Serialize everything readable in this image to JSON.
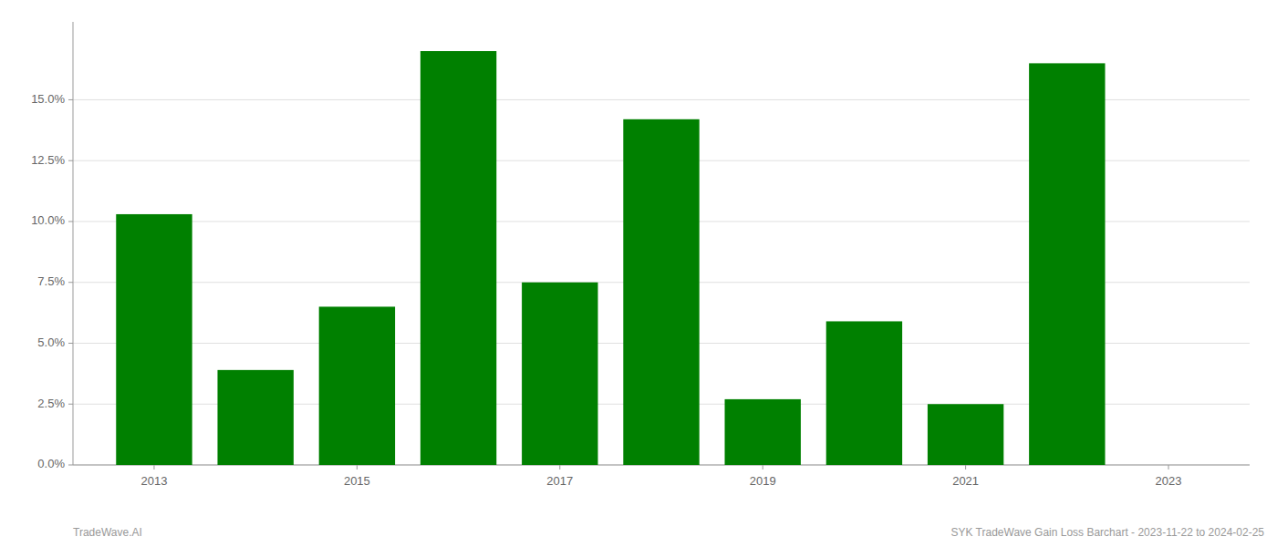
{
  "chart_data": {
    "type": "bar",
    "x": [
      2013,
      2014,
      2015,
      2016,
      2017,
      2018,
      2019,
      2020,
      2021,
      2022
    ],
    "values": [
      0.103,
      0.039,
      0.065,
      0.17,
      0.075,
      0.142,
      0.027,
      0.059,
      0.025,
      0.165
    ],
    "color": "#008000",
    "xlim": [
      2012.2,
      2023.8
    ],
    "xticks": [
      2013,
      2015,
      2017,
      2019,
      2021,
      2023
    ],
    "ylim": [
      0,
      0.182
    ],
    "yticks": [
      {
        "value": 0.0,
        "label": "0.0%"
      },
      {
        "value": 0.025,
        "label": "2.5%"
      },
      {
        "value": 0.05,
        "label": "5.0%"
      },
      {
        "value": 0.075,
        "label": "7.5%"
      },
      {
        "value": 0.1,
        "label": "10.0%"
      },
      {
        "value": 0.125,
        "label": "12.5%"
      },
      {
        "value": 0.15,
        "label": "15.0%"
      }
    ],
    "grid": true,
    "annotations": [
      "TradeWave.AI",
      "SYK TradeWave Gain Loss Barchart - 2023-11-22 to 2024-02-25"
    ]
  }
}
